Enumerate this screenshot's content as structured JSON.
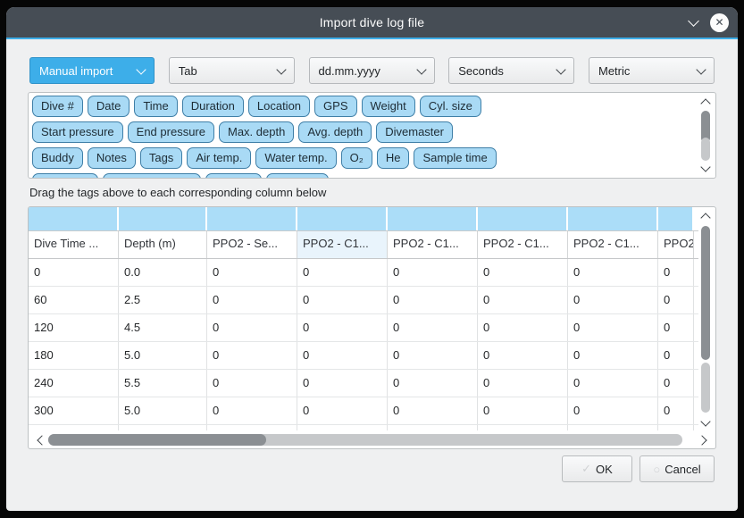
{
  "window": {
    "title": "Import dive log file"
  },
  "titlebar": {
    "icons": [
      {
        "name": "chevron-down-icon"
      },
      {
        "name": "close-icon"
      }
    ]
  },
  "toolbar": {
    "combos": [
      {
        "id": "import-mode",
        "value": "Manual import",
        "selected": true
      },
      {
        "id": "field-separator",
        "value": "Tab",
        "selected": false
      },
      {
        "id": "date-format",
        "value": "dd.mm.yyyy",
        "selected": false
      },
      {
        "id": "duration-format",
        "value": "Seconds",
        "selected": false
      },
      {
        "id": "units",
        "value": "Metric",
        "selected": false
      }
    ]
  },
  "tags": {
    "rows": [
      [
        "Dive #",
        "Date",
        "Time",
        "Duration",
        "Location",
        "GPS",
        "Weight",
        "Cyl. size"
      ],
      [
        "Start pressure",
        "End pressure",
        "Max. depth",
        "Avg. depth",
        "Divemaster"
      ],
      [
        "Buddy",
        "Notes",
        "Tags",
        "Air temp.",
        "Water temp.",
        "O₂",
        "He",
        "Sample time"
      ],
      [
        "",
        "",
        "",
        ""
      ]
    ]
  },
  "instruction": "Drag the tags above to each corresponding column below",
  "table": {
    "headers": [
      "Dive Time ...",
      "Depth (m)",
      "PPO2 - Se...",
      "PPO2 - C1...",
      "PPO2 - C1...",
      "PPO2 - C1...",
      "PPO2 - C1...",
      "PPO2"
    ],
    "highlighted_column": 3,
    "rows": [
      [
        "0",
        "0.0",
        "0",
        "0",
        "0",
        "0",
        "0",
        "0"
      ],
      [
        "60",
        "2.5",
        "0",
        "0",
        "0",
        "0",
        "0",
        "0"
      ],
      [
        "120",
        "4.5",
        "0",
        "0",
        "0",
        "0",
        "0",
        "0"
      ],
      [
        "180",
        "5.0",
        "0",
        "0",
        "0",
        "0",
        "0",
        "0"
      ],
      [
        "240",
        "5.5",
        "0",
        "0",
        "0",
        "0",
        "0",
        "0"
      ],
      [
        "300",
        "5.0",
        "0",
        "0",
        "0",
        "0",
        "0",
        "0"
      ]
    ]
  },
  "buttons": {
    "ok": "OK",
    "cancel": "Cancel"
  },
  "colors": {
    "accent": "#3daee9",
    "titlebar": "#464d55",
    "tag_fill": "#a9daf5",
    "tag_border": "#3f7fa7",
    "drop_row": "#abddf8",
    "dialog_bg": "#eff0f1"
  }
}
